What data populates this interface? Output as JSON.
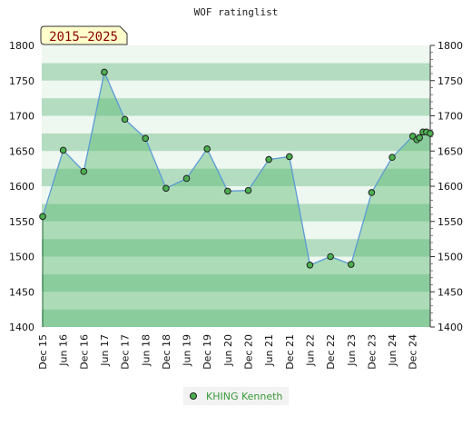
{
  "chart_data": {
    "type": "area",
    "title": "WOF ratinglist",
    "period_label": "2015–2025",
    "ylim": [
      1400,
      1800
    ],
    "y_ticks": [
      1400,
      1450,
      1500,
      1550,
      1600,
      1650,
      1700,
      1750,
      1800
    ],
    "x_ticks": [
      "Dec 15",
      "Jun 16",
      "Dec 16",
      "Jun 17",
      "Dec 17",
      "Jun 18",
      "Dec 18",
      "Jun 19",
      "Dec 19",
      "Jun 20",
      "Dec 20",
      "Jun 21",
      "Dec 21",
      "Jun 22",
      "Dec 22",
      "Jun 23",
      "Dec 23",
      "Jun 24",
      "Dec 24"
    ],
    "legend_position": "bottom-center",
    "colors": {
      "line": "#5b9bd5",
      "fill": "#5cb870",
      "marker": "#4caf50",
      "band_dark": "#b3dcc0",
      "band_light": "#eef7f0",
      "legend_text": "#3a9a3a",
      "period_bg": "#ffffcc",
      "period_text": "#8b0000"
    },
    "series": [
      {
        "name": "KHING Kenneth",
        "x": [
          0,
          1,
          2,
          3,
          4,
          5,
          6,
          7,
          8,
          9,
          10,
          11,
          12,
          13,
          14,
          15,
          16,
          17,
          18,
          18.2,
          18.33,
          18.5,
          18.67,
          18.85
        ],
        "values": [
          1557,
          1651,
          1621,
          1762,
          1695,
          1668,
          1597,
          1611,
          1653,
          1593,
          1594,
          1638,
          1642,
          1488,
          1500,
          1489,
          1591,
          1641,
          1671,
          1666,
          1669,
          1677,
          1677,
          1675
        ]
      }
    ]
  }
}
